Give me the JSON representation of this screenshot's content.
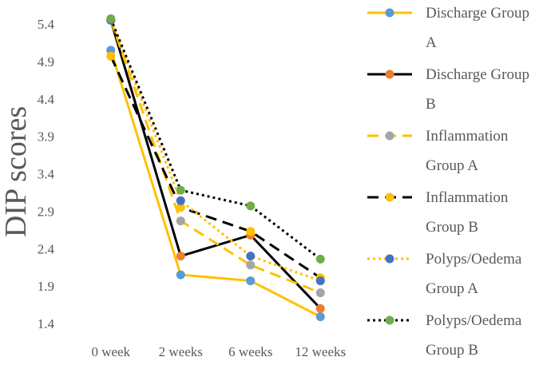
{
  "chart_data": {
    "type": "line",
    "title": "",
    "xlabel": "",
    "ylabel": "DIP scores",
    "categories": [
      "0 week",
      "2 weeks",
      "6 weeks",
      "12 weeks"
    ],
    "ylim": [
      1.4,
      5.4
    ],
    "yticks": [
      "5.4",
      "4.9",
      "4.4",
      "3.9",
      "3.4",
      "2.9",
      "2.4",
      "1.9",
      "1.4"
    ],
    "grid": false,
    "legend_position": "right",
    "series": [
      {
        "name": "Discharge Group A",
        "name_lines": [
          "Discharge Group",
          "A"
        ],
        "values": [
          5.05,
          2.05,
          1.97,
          1.49
        ],
        "color": "#FFC000",
        "marker_color": "#5B9BD5",
        "dash": "solid"
      },
      {
        "name": "Discharge Group B",
        "name_lines": [
          "Discharge Group",
          "B"
        ],
        "values": [
          5.45,
          2.3,
          2.58,
          1.6
        ],
        "color": "#000000",
        "marker_color": "#ED7D31",
        "dash": "solid"
      },
      {
        "name": "Inflammation Group A",
        "name_lines": [
          "Inflammation",
          "Group A"
        ],
        "values": [
          5.45,
          2.77,
          2.18,
          1.81
        ],
        "color": "#FFC000",
        "marker_color": "#A5A5A5",
        "dash": "dashed"
      },
      {
        "name": "Inflammation Group B",
        "name_lines": [
          "Inflammation",
          "Group B"
        ],
        "values": [
          4.97,
          2.95,
          2.63,
          2.01
        ],
        "color": "#000000",
        "marker_color": "#FFC000",
        "dash": "dashed"
      },
      {
        "name": "Polyps/Oedema Group A",
        "name_lines": [
          "Polyps/Oedema",
          "Group A"
        ],
        "values": [
          5.45,
          3.04,
          2.3,
          1.97
        ],
        "color": "#FFC000",
        "marker_color": "#4472C4",
        "dash": "dotted"
      },
      {
        "name": "Polyps/Oedema Group B",
        "name_lines": [
          "Polyps/Oedema",
          "Group B"
        ],
        "values": [
          5.47,
          3.18,
          2.97,
          2.26
        ],
        "color": "#000000",
        "marker_color": "#70AD47",
        "dash": "dotted"
      }
    ]
  }
}
